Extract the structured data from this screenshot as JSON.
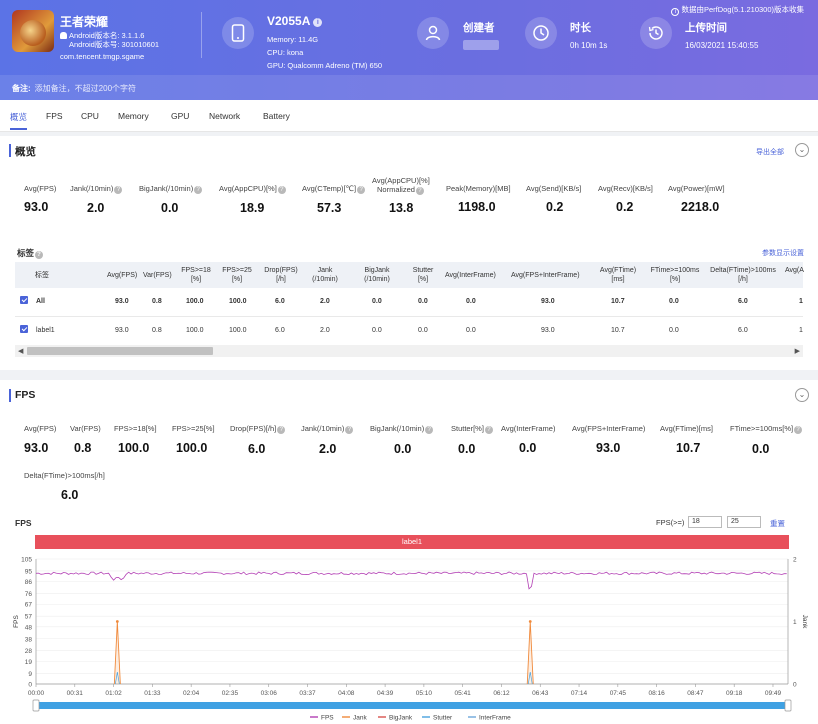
{
  "app": {
    "name": "王者荣耀",
    "android_version": "Android版本名: 3.1.1.6",
    "android_code": "Android版本号: 301010601",
    "package": "com.tencent.tmgp.sgame"
  },
  "device": {
    "model": "V2055A",
    "memory": "Memory: 11.4G",
    "cpu": "CPU: kona",
    "gpu": "GPU: Qualcomm Adreno (TM) 650"
  },
  "creator": {
    "label": "创建者"
  },
  "duration": {
    "label": "时长",
    "value": "0h 10m 1s"
  },
  "upload": {
    "label": "上传时间",
    "value": "16/03/2021 15:40:55"
  },
  "source": "数据由PerfDog(5.1.210300)版本收集",
  "note": {
    "label": "备注:",
    "placeholder": "添加备注，不超过200个字符"
  },
  "tabs": [
    "概览",
    "FPS",
    "CPU",
    "Memory",
    "GPU",
    "Network",
    "Battery"
  ],
  "overview": {
    "title": "概览",
    "export_label": "导出全部",
    "metrics": [
      {
        "label": "Avg(FPS)",
        "value": "93.0"
      },
      {
        "label": "Jank(/10min)",
        "value": "2.0"
      },
      {
        "label": "BigJank(/10min)",
        "value": "0.0"
      },
      {
        "label": "Avg(AppCPU)[%]",
        "value": "18.9"
      },
      {
        "label": "Avg(CTemp)[℃]",
        "value": "57.3"
      },
      {
        "label": "Avg(AppCPU)[%]",
        "label2": "Normalized",
        "value": "13.8"
      },
      {
        "label": "Peak(Memory)[MB]",
        "value": "1198.0"
      },
      {
        "label": "Avg(Send)[KB/s]",
        "value": "0.2"
      },
      {
        "label": "Avg(Recv)[KB/s]",
        "value": "0.2"
      },
      {
        "label": "Avg(Power)[mW]",
        "value": "2218.0"
      }
    ]
  },
  "labels": {
    "title": "标签",
    "settings_label": "参数显示设置",
    "columns": [
      "标签",
      "Avg(FPS)",
      "Var(FPS)",
      "FPS>=18 [%]",
      "FPS>=25 [%]",
      "Drop(FPS) [/h]",
      "Jank (/10min)",
      "BigJank (/10min)",
      "Stutter [%]",
      "Avg(InterFrame)",
      "Avg(FPS+InterFrame)",
      "Avg(FTime) [ms]",
      "FTime>=100ms [%]",
      "Delta(FTime)>100ms [/h]",
      "Avg(A"
    ],
    "rows": [
      {
        "name": "All",
        "values": [
          "93.0",
          "0.8",
          "100.0",
          "100.0",
          "6.0",
          "2.0",
          "0.0",
          "0.0",
          "0.0",
          "93.0",
          "10.7",
          "0.0",
          "6.0",
          "1"
        ]
      },
      {
        "name": "label1",
        "values": [
          "93.0",
          "0.8",
          "100.0",
          "100.0",
          "6.0",
          "2.0",
          "0.0",
          "0.0",
          "0.0",
          "93.0",
          "10.7",
          "0.0",
          "6.0",
          "1"
        ]
      }
    ]
  },
  "fps_section": {
    "title": "FPS",
    "metrics": [
      {
        "label": "Avg(FPS)",
        "value": "93.0"
      },
      {
        "label": "Var(FPS)",
        "value": "0.8"
      },
      {
        "label": "FPS>=18[%]",
        "value": "100.0"
      },
      {
        "label": "FPS>=25[%]",
        "value": "100.0"
      },
      {
        "label": "Drop(FPS)[/h]",
        "value": "6.0"
      },
      {
        "label": "Jank(/10min)",
        "value": "2.0"
      },
      {
        "label": "BigJank(/10min)",
        "value": "0.0"
      },
      {
        "label": "Stutter[%]",
        "value": "0.0"
      },
      {
        "label": "Avg(InterFrame)",
        "value": "0.0"
      },
      {
        "label": "Avg(FPS+InterFrame)",
        "value": "93.0"
      },
      {
        "label": "Avg(FTime)[ms]",
        "value": "10.7"
      },
      {
        "label": "FTime>=100ms[%]",
        "value": "0.0"
      },
      {
        "label": "Delta(FTime)>100ms[/h]",
        "value": "6.0"
      }
    ],
    "chart_title": "FPS",
    "fps_threshold_label": "FPS(>=)",
    "threshold_1": "18",
    "threshold_2": "25",
    "reset_label": "重置",
    "band_label": "label1"
  },
  "colors": {
    "accent": "#4a63d8",
    "band": "#e8505b",
    "fps": "#b23fb4",
    "jank": "#f08a3c",
    "bigjank": "#d9534f",
    "stutter": "#4aa3df",
    "interframe": "#6fa8dc"
  },
  "chart_data": {
    "type": "line",
    "x_ticks": [
      "00:00",
      "00:31",
      "01:02",
      "01:33",
      "02:04",
      "02:35",
      "03:06",
      "03:37",
      "04:08",
      "04:39",
      "05:10",
      "05:41",
      "06:12",
      "06:43",
      "07:14",
      "07:45",
      "08:16",
      "08:47",
      "09:18",
      "09:49"
    ],
    "y_left_ticks": [
      "0",
      "9",
      "19",
      "28",
      "38",
      "48",
      "57",
      "67",
      "76",
      "86",
      "95",
      "105"
    ],
    "y_right_ticks": [
      "0",
      "1",
      "2"
    ],
    "ylabel_left": "FPS",
    "ylabel_right": "Jank",
    "ylim_left": [
      0,
      105
    ],
    "ylim_right": [
      0,
      2
    ],
    "fps_level": 93,
    "jank_events_x_seconds": [
      65,
      395
    ],
    "legend": [
      "FPS",
      "Jank",
      "BigJank",
      "Stutter",
      "InterFrame"
    ],
    "legend_position": "bottom"
  }
}
